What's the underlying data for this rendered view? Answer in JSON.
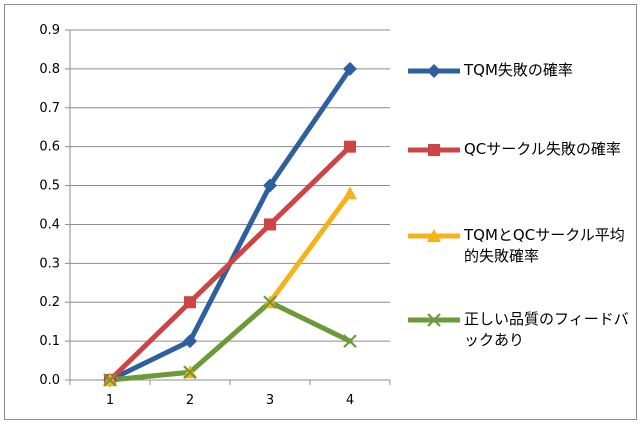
{
  "chart_data": {
    "type": "line",
    "title": "",
    "xlabel": "",
    "ylabel": "",
    "x": [
      1,
      2,
      3,
      4
    ],
    "x_tick_labels": [
      "1",
      "2",
      "3",
      "4"
    ],
    "ylim": [
      0,
      0.9
    ],
    "y_ticks": [
      0,
      0.1,
      0.2,
      0.3,
      0.4,
      0.5,
      0.6,
      0.7,
      0.8,
      0.9
    ],
    "y_tick_labels": [
      "0.0",
      "0.1",
      "0.2",
      "0.3",
      "0.4",
      "0.5",
      "0.6",
      "0.7",
      "0.8",
      "0.9"
    ],
    "grid": true,
    "legend_position": "right",
    "series": [
      {
        "name": "TQM失敗の確率",
        "values": [
          0,
          0.1,
          0.5,
          0.8
        ],
        "color": "#2e5f9e",
        "marker": "diamond"
      },
      {
        "name": "QCサークル失敗の確率",
        "values": [
          0,
          0.2,
          0.4,
          0.6
        ],
        "color": "#cc4444",
        "marker": "square"
      },
      {
        "name": "TQMとQCサークル平均的失敗確率",
        "values": [
          0,
          0.02,
          0.2,
          0.48
        ],
        "color": "#f5b21a",
        "marker": "triangle"
      },
      {
        "name": "正しい品質のフィードバックあり",
        "values": [
          0,
          0.02,
          0.2,
          0.1
        ],
        "color": "#6a9a3a",
        "marker": "x"
      }
    ]
  },
  "legend": {
    "entries": [
      {
        "label": "TQM失敗の確率",
        "color": "#2e5f9e",
        "marker": "diamond"
      },
      {
        "label": "QCサークル失敗の確率",
        "color": "#cc4444",
        "marker": "square"
      },
      {
        "label": "TQMとQCサークル平均的失敗確率",
        "color": "#f5b21a",
        "marker": "triangle"
      },
      {
        "label": "正しい品質のフィードバックあり",
        "color": "#6a9a3a",
        "marker": "x"
      }
    ]
  }
}
